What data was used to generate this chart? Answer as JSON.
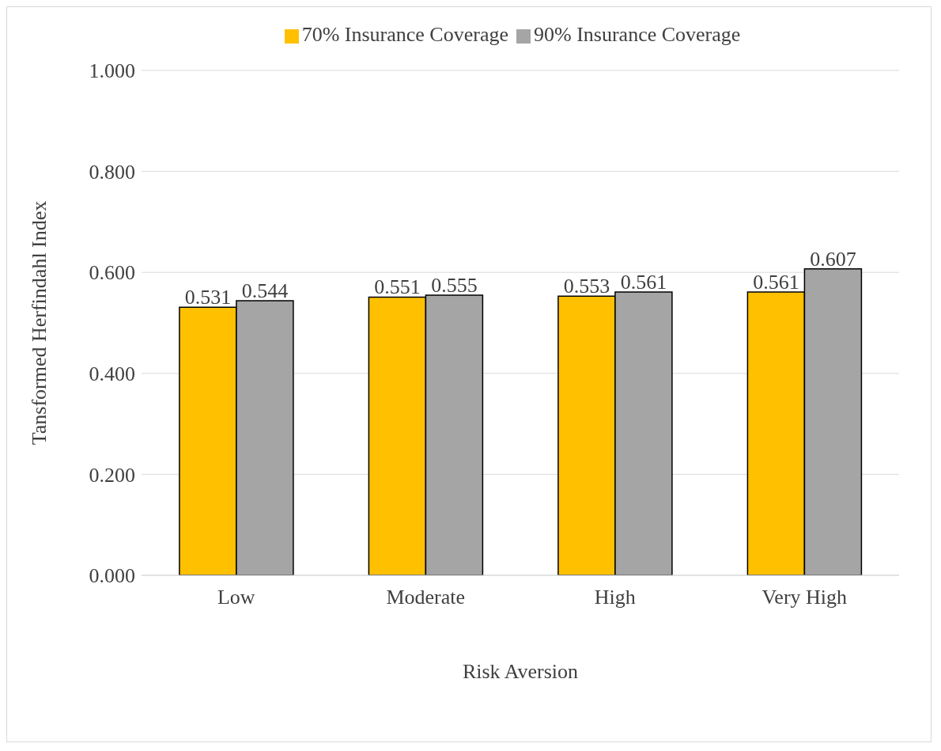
{
  "chart_data": {
    "type": "bar",
    "xlabel": "Risk Aversion",
    "ylabel": "Tansformed Herfindahl Index",
    "categories": [
      "Low",
      "Moderate",
      "High",
      "Very High"
    ],
    "series": [
      {
        "name": "70% Insurance Coverage",
        "color": "#ffc000",
        "values": [
          0.531,
          0.551,
          0.553,
          0.561
        ]
      },
      {
        "name": "90% Insurance Coverage",
        "color": "#a5a5a5",
        "values": [
          0.544,
          0.555,
          0.561,
          0.607
        ]
      }
    ],
    "ylim": [
      0,
      1
    ],
    "yticks": [
      {
        "value": 0,
        "label": "0.000"
      },
      {
        "value": 0.2,
        "label": "0.200"
      },
      {
        "value": 0.4,
        "label": "0.400"
      },
      {
        "value": 0.6,
        "label": "0.600"
      },
      {
        "value": 0.8,
        "label": "0.800"
      },
      {
        "value": 1,
        "label": "1.000"
      }
    ],
    "grid": "y",
    "legend": "top",
    "data_labels": true
  }
}
